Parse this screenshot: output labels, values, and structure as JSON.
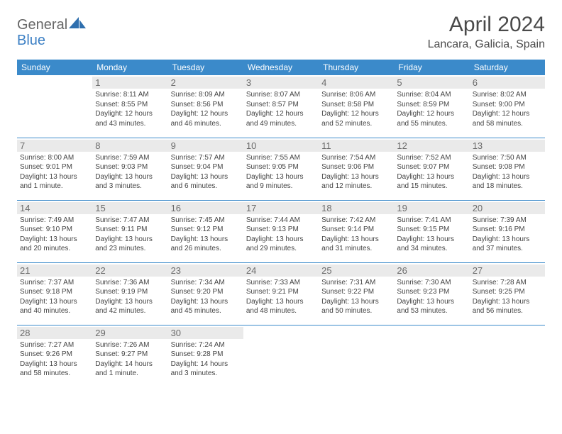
{
  "logo": {
    "part1": "General",
    "part2": "Blue"
  },
  "title": "April 2024",
  "location": "Lancara, Galicia, Spain",
  "colors": {
    "header_bg": "#3b8aca",
    "header_text": "#ffffff",
    "daybar_bg": "#eaeaea",
    "daynum_text": "#6b6b6b",
    "body_text": "#444444",
    "rule": "#3b8aca",
    "logo_gray": "#676767",
    "logo_blue": "#3b7fc4"
  },
  "fonts": {
    "title_pt": 30,
    "location_pt": 16,
    "header_pt": 12,
    "daynum_pt": 13,
    "body_pt": 10
  },
  "weekdays": [
    "Sunday",
    "Monday",
    "Tuesday",
    "Wednesday",
    "Thursday",
    "Friday",
    "Saturday"
  ],
  "weeks": [
    [
      null,
      {
        "n": "1",
        "sr": "Sunrise: 8:11 AM",
        "ss": "Sunset: 8:55 PM",
        "d1": "Daylight: 12 hours",
        "d2": "and 43 minutes."
      },
      {
        "n": "2",
        "sr": "Sunrise: 8:09 AM",
        "ss": "Sunset: 8:56 PM",
        "d1": "Daylight: 12 hours",
        "d2": "and 46 minutes."
      },
      {
        "n": "3",
        "sr": "Sunrise: 8:07 AM",
        "ss": "Sunset: 8:57 PM",
        "d1": "Daylight: 12 hours",
        "d2": "and 49 minutes."
      },
      {
        "n": "4",
        "sr": "Sunrise: 8:06 AM",
        "ss": "Sunset: 8:58 PM",
        "d1": "Daylight: 12 hours",
        "d2": "and 52 minutes."
      },
      {
        "n": "5",
        "sr": "Sunrise: 8:04 AM",
        "ss": "Sunset: 8:59 PM",
        "d1": "Daylight: 12 hours",
        "d2": "and 55 minutes."
      },
      {
        "n": "6",
        "sr": "Sunrise: 8:02 AM",
        "ss": "Sunset: 9:00 PM",
        "d1": "Daylight: 12 hours",
        "d2": "and 58 minutes."
      }
    ],
    [
      {
        "n": "7",
        "sr": "Sunrise: 8:00 AM",
        "ss": "Sunset: 9:01 PM",
        "d1": "Daylight: 13 hours",
        "d2": "and 1 minute."
      },
      {
        "n": "8",
        "sr": "Sunrise: 7:59 AM",
        "ss": "Sunset: 9:03 PM",
        "d1": "Daylight: 13 hours",
        "d2": "and 3 minutes."
      },
      {
        "n": "9",
        "sr": "Sunrise: 7:57 AM",
        "ss": "Sunset: 9:04 PM",
        "d1": "Daylight: 13 hours",
        "d2": "and 6 minutes."
      },
      {
        "n": "10",
        "sr": "Sunrise: 7:55 AM",
        "ss": "Sunset: 9:05 PM",
        "d1": "Daylight: 13 hours",
        "d2": "and 9 minutes."
      },
      {
        "n": "11",
        "sr": "Sunrise: 7:54 AM",
        "ss": "Sunset: 9:06 PM",
        "d1": "Daylight: 13 hours",
        "d2": "and 12 minutes."
      },
      {
        "n": "12",
        "sr": "Sunrise: 7:52 AM",
        "ss": "Sunset: 9:07 PM",
        "d1": "Daylight: 13 hours",
        "d2": "and 15 minutes."
      },
      {
        "n": "13",
        "sr": "Sunrise: 7:50 AM",
        "ss": "Sunset: 9:08 PM",
        "d1": "Daylight: 13 hours",
        "d2": "and 18 minutes."
      }
    ],
    [
      {
        "n": "14",
        "sr": "Sunrise: 7:49 AM",
        "ss": "Sunset: 9:10 PM",
        "d1": "Daylight: 13 hours",
        "d2": "and 20 minutes."
      },
      {
        "n": "15",
        "sr": "Sunrise: 7:47 AM",
        "ss": "Sunset: 9:11 PM",
        "d1": "Daylight: 13 hours",
        "d2": "and 23 minutes."
      },
      {
        "n": "16",
        "sr": "Sunrise: 7:45 AM",
        "ss": "Sunset: 9:12 PM",
        "d1": "Daylight: 13 hours",
        "d2": "and 26 minutes."
      },
      {
        "n": "17",
        "sr": "Sunrise: 7:44 AM",
        "ss": "Sunset: 9:13 PM",
        "d1": "Daylight: 13 hours",
        "d2": "and 29 minutes."
      },
      {
        "n": "18",
        "sr": "Sunrise: 7:42 AM",
        "ss": "Sunset: 9:14 PM",
        "d1": "Daylight: 13 hours",
        "d2": "and 31 minutes."
      },
      {
        "n": "19",
        "sr": "Sunrise: 7:41 AM",
        "ss": "Sunset: 9:15 PM",
        "d1": "Daylight: 13 hours",
        "d2": "and 34 minutes."
      },
      {
        "n": "20",
        "sr": "Sunrise: 7:39 AM",
        "ss": "Sunset: 9:16 PM",
        "d1": "Daylight: 13 hours",
        "d2": "and 37 minutes."
      }
    ],
    [
      {
        "n": "21",
        "sr": "Sunrise: 7:37 AM",
        "ss": "Sunset: 9:18 PM",
        "d1": "Daylight: 13 hours",
        "d2": "and 40 minutes."
      },
      {
        "n": "22",
        "sr": "Sunrise: 7:36 AM",
        "ss": "Sunset: 9:19 PM",
        "d1": "Daylight: 13 hours",
        "d2": "and 42 minutes."
      },
      {
        "n": "23",
        "sr": "Sunrise: 7:34 AM",
        "ss": "Sunset: 9:20 PM",
        "d1": "Daylight: 13 hours",
        "d2": "and 45 minutes."
      },
      {
        "n": "24",
        "sr": "Sunrise: 7:33 AM",
        "ss": "Sunset: 9:21 PM",
        "d1": "Daylight: 13 hours",
        "d2": "and 48 minutes."
      },
      {
        "n": "25",
        "sr": "Sunrise: 7:31 AM",
        "ss": "Sunset: 9:22 PM",
        "d1": "Daylight: 13 hours",
        "d2": "and 50 minutes."
      },
      {
        "n": "26",
        "sr": "Sunrise: 7:30 AM",
        "ss": "Sunset: 9:23 PM",
        "d1": "Daylight: 13 hours",
        "d2": "and 53 minutes."
      },
      {
        "n": "27",
        "sr": "Sunrise: 7:28 AM",
        "ss": "Sunset: 9:25 PM",
        "d1": "Daylight: 13 hours",
        "d2": "and 56 minutes."
      }
    ],
    [
      {
        "n": "28",
        "sr": "Sunrise: 7:27 AM",
        "ss": "Sunset: 9:26 PM",
        "d1": "Daylight: 13 hours",
        "d2": "and 58 minutes."
      },
      {
        "n": "29",
        "sr": "Sunrise: 7:26 AM",
        "ss": "Sunset: 9:27 PM",
        "d1": "Daylight: 14 hours",
        "d2": "and 1 minute."
      },
      {
        "n": "30",
        "sr": "Sunrise: 7:24 AM",
        "ss": "Sunset: 9:28 PM",
        "d1": "Daylight: 14 hours",
        "d2": "and 3 minutes."
      },
      null,
      null,
      null,
      null
    ]
  ]
}
